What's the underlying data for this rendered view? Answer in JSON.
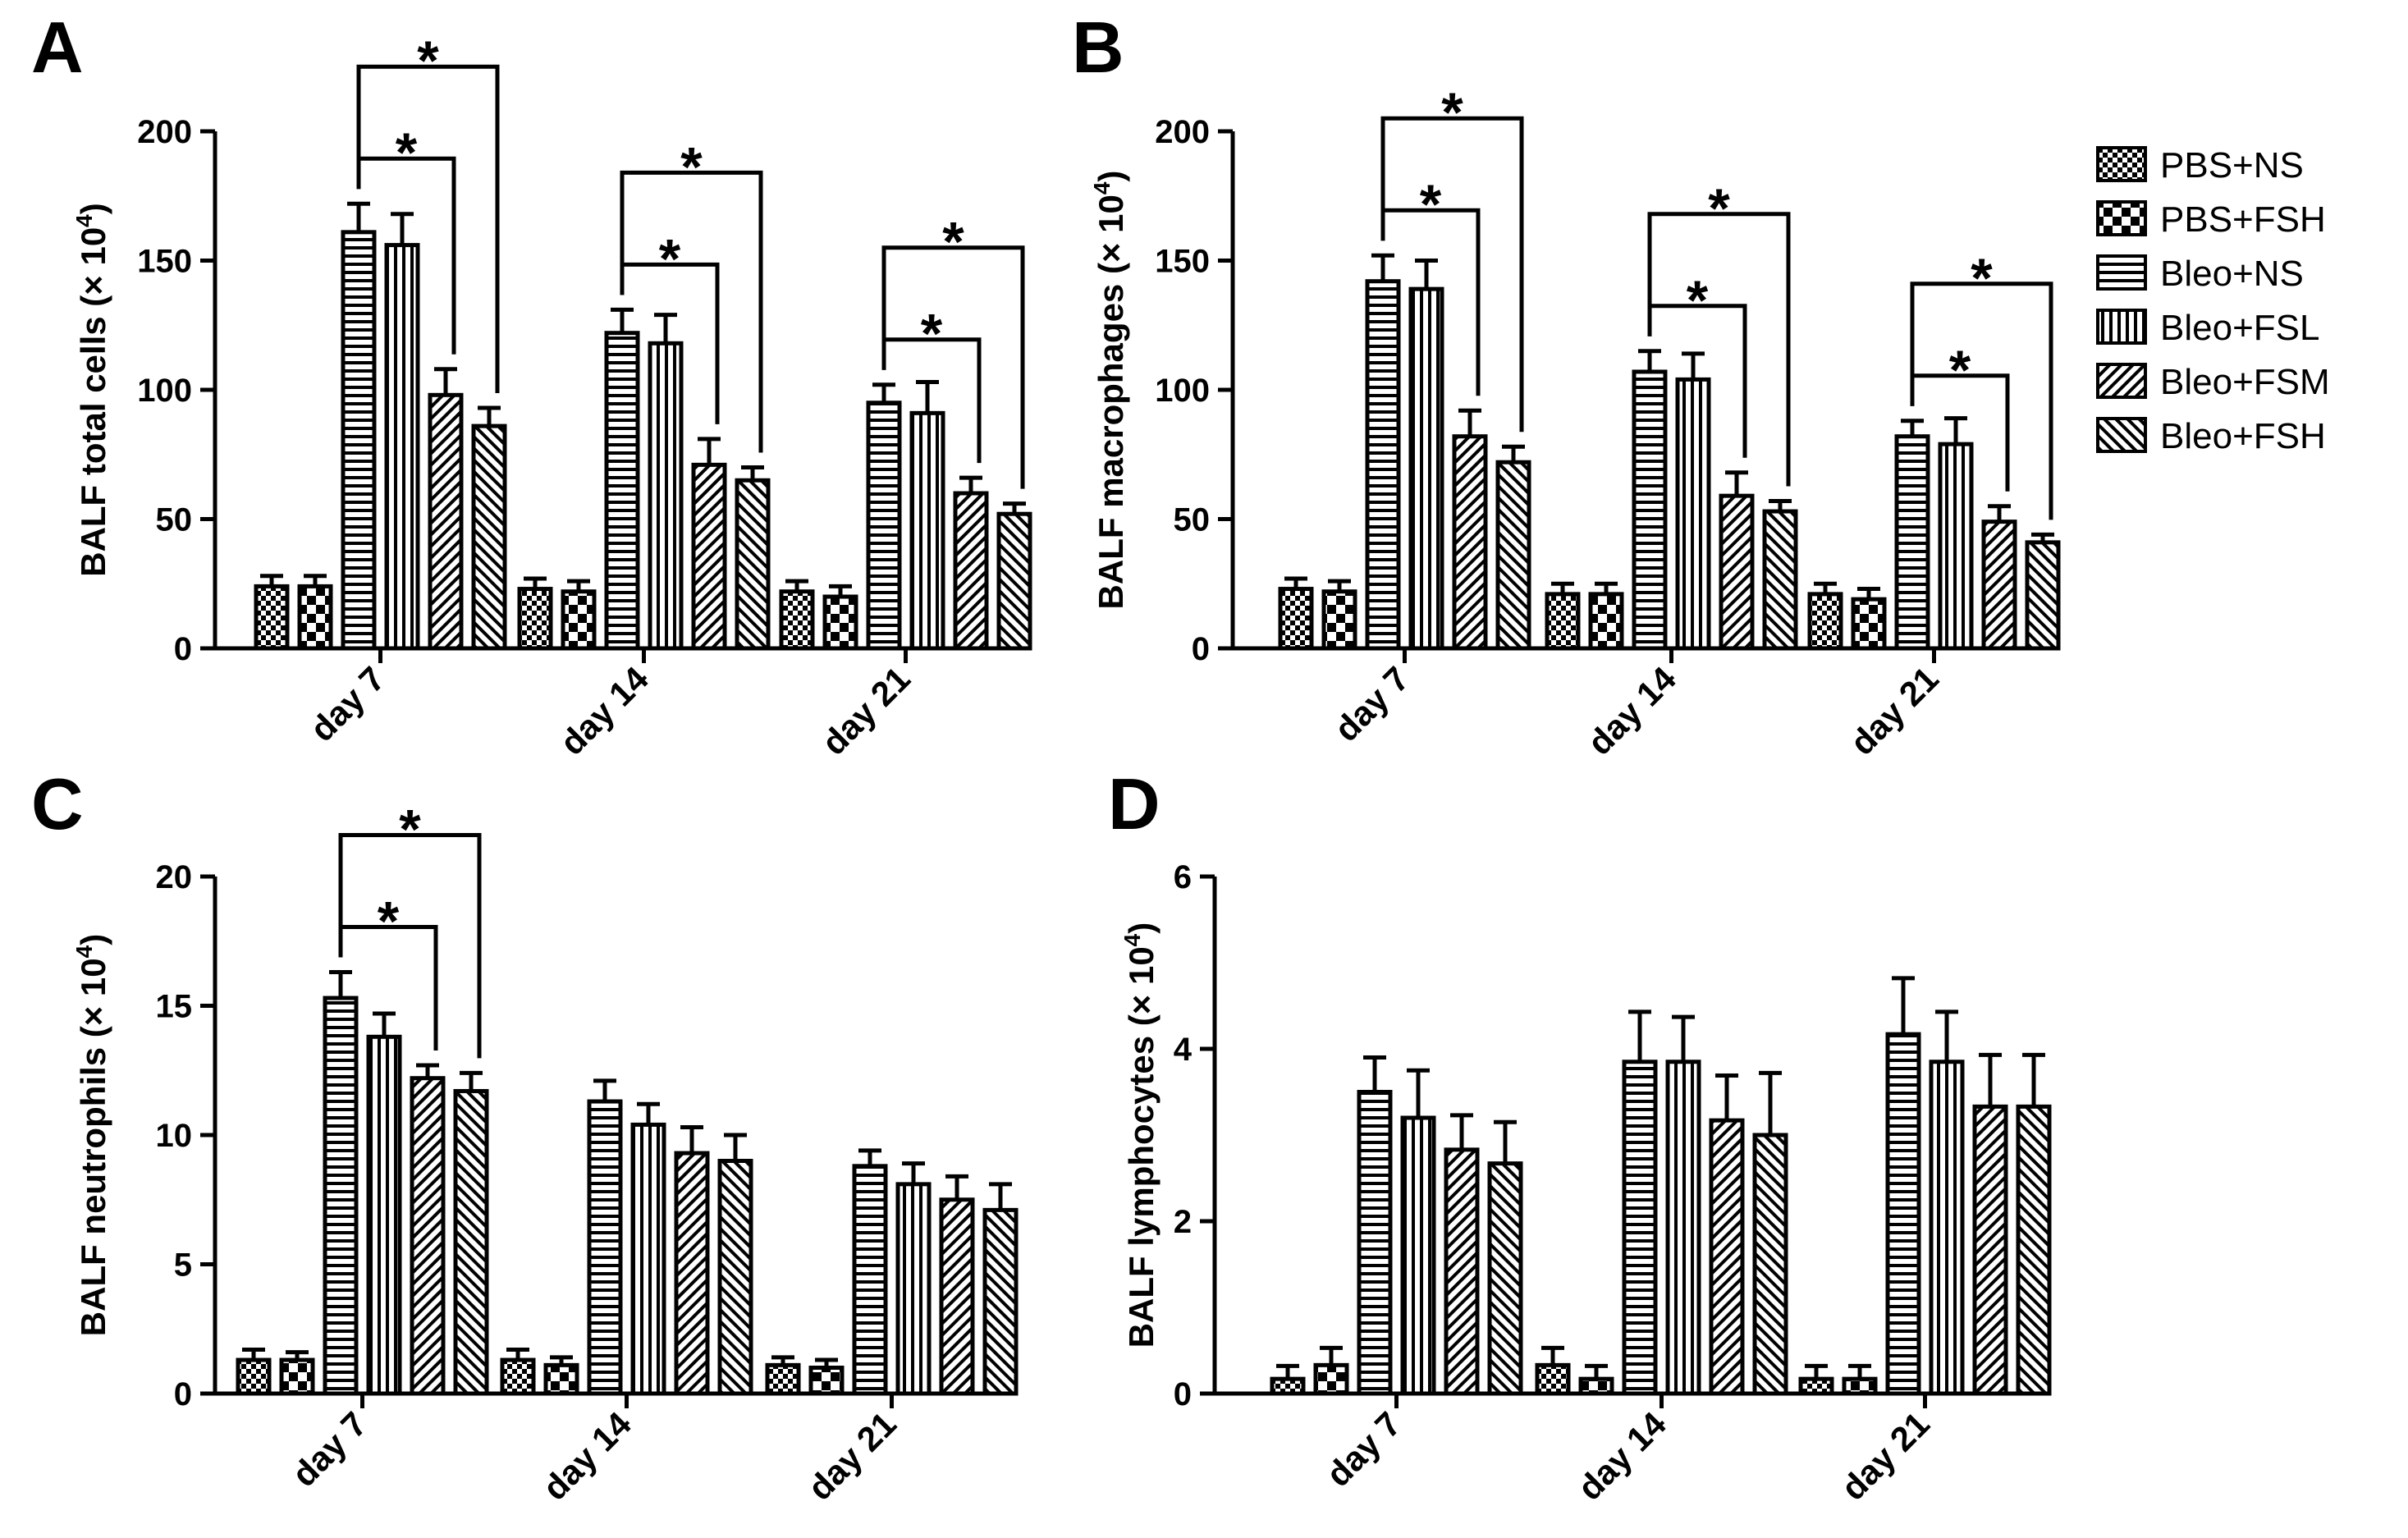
{
  "legend": {
    "position": "right",
    "entries": [
      {
        "label": "PBS+NS",
        "pattern": "checker"
      },
      {
        "label": "PBS+FSH",
        "pattern": "checker-large"
      },
      {
        "label": "Bleo+NS",
        "pattern": "horizontal"
      },
      {
        "label": "Bleo+FSL",
        "pattern": "vertical"
      },
      {
        "label": "Bleo+FSM",
        "pattern": "diag-right"
      },
      {
        "label": "Bleo+FSH",
        "pattern": "diag-left"
      }
    ]
  },
  "chart_data": [
    {
      "panel": "A",
      "type": "bar",
      "ylabel_main": "BALF total cells (× 10",
      "ylabel_exp": "4",
      "ylabel_close": ")",
      "ylim": [
        0,
        200
      ],
      "yticks": [
        "0",
        "50",
        "100",
        "150",
        "200"
      ],
      "categories": [
        "day 7",
        "day 14",
        "day 21"
      ],
      "series": [
        {
          "legend_index": 0,
          "values": [
            24,
            23,
            22
          ],
          "errors": [
            4,
            4,
            4
          ]
        },
        {
          "legend_index": 1,
          "values": [
            24,
            22,
            20
          ],
          "errors": [
            4,
            4,
            4
          ]
        },
        {
          "legend_index": 2,
          "values": [
            161,
            122,
            95
          ],
          "errors": [
            11,
            9,
            7
          ]
        },
        {
          "legend_index": 3,
          "values": [
            156,
            118,
            91
          ],
          "errors": [
            12,
            11,
            12
          ]
        },
        {
          "legend_index": 4,
          "values": [
            98,
            71,
            60
          ],
          "errors": [
            10,
            10,
            6
          ]
        },
        {
          "legend_index": 5,
          "values": [
            86,
            65,
            52
          ],
          "errors": [
            7,
            5,
            4
          ]
        }
      ],
      "significance": [
        {
          "category": 0,
          "from": 2,
          "to": 4,
          "label": "*"
        },
        {
          "category": 0,
          "from": 2,
          "to": 5,
          "label": "*"
        },
        {
          "category": 1,
          "from": 2,
          "to": 4,
          "label": "*"
        },
        {
          "category": 1,
          "from": 2,
          "to": 5,
          "label": "*"
        },
        {
          "category": 2,
          "from": 2,
          "to": 4,
          "label": "*"
        },
        {
          "category": 2,
          "from": 2,
          "to": 5,
          "label": "*"
        }
      ]
    },
    {
      "panel": "B",
      "type": "bar",
      "ylabel_main": "BALF macrophages (× 10",
      "ylabel_exp": "4",
      "ylabel_close": ")",
      "ylim": [
        0,
        200
      ],
      "yticks": [
        "0",
        "50",
        "100",
        "150",
        "200"
      ],
      "categories": [
        "day 7",
        "day 14",
        "day 21"
      ],
      "series": [
        {
          "legend_index": 0,
          "values": [
            23,
            21,
            21
          ],
          "errors": [
            4,
            4,
            4
          ]
        },
        {
          "legend_index": 1,
          "values": [
            22,
            21,
            19
          ],
          "errors": [
            4,
            4,
            4
          ]
        },
        {
          "legend_index": 2,
          "values": [
            142,
            107,
            82
          ],
          "errors": [
            10,
            8,
            6
          ]
        },
        {
          "legend_index": 3,
          "values": [
            139,
            104,
            79
          ],
          "errors": [
            11,
            10,
            10
          ]
        },
        {
          "legend_index": 4,
          "values": [
            82,
            59,
            49
          ],
          "errors": [
            10,
            9,
            6
          ]
        },
        {
          "legend_index": 5,
          "values": [
            72,
            53,
            41
          ],
          "errors": [
            6,
            4,
            3
          ]
        }
      ],
      "significance": [
        {
          "category": 0,
          "from": 2,
          "to": 4,
          "label": "*"
        },
        {
          "category": 0,
          "from": 2,
          "to": 5,
          "label": "*"
        },
        {
          "category": 1,
          "from": 2,
          "to": 4,
          "label": "*"
        },
        {
          "category": 1,
          "from": 2,
          "to": 5,
          "label": "*"
        },
        {
          "category": 2,
          "from": 2,
          "to": 4,
          "label": "*"
        },
        {
          "category": 2,
          "from": 2,
          "to": 5,
          "label": "*"
        }
      ]
    },
    {
      "panel": "C",
      "type": "bar",
      "ylabel_main": "BALF neutrophils (× 10",
      "ylabel_exp": "4",
      "ylabel_close": ")",
      "ylim": [
        0,
        20
      ],
      "yticks": [
        "0",
        "5",
        "10",
        "15",
        "20"
      ],
      "categories": [
        "day 7",
        "day 14",
        "day 21"
      ],
      "series": [
        {
          "legend_index": 0,
          "values": [
            1.3,
            1.3,
            1.1
          ],
          "errors": [
            0.4,
            0.4,
            0.3
          ]
        },
        {
          "legend_index": 1,
          "values": [
            1.3,
            1.1,
            1.0
          ],
          "errors": [
            0.3,
            0.3,
            0.3
          ]
        },
        {
          "legend_index": 2,
          "values": [
            15.3,
            11.3,
            8.8
          ],
          "errors": [
            1.0,
            0.8,
            0.6
          ]
        },
        {
          "legend_index": 3,
          "values": [
            13.8,
            10.4,
            8.1
          ],
          "errors": [
            0.9,
            0.8,
            0.8
          ]
        },
        {
          "legend_index": 4,
          "values": [
            12.2,
            9.3,
            7.5
          ],
          "errors": [
            0.5,
            1.0,
            0.9
          ]
        },
        {
          "legend_index": 5,
          "values": [
            11.7,
            9.0,
            7.1
          ],
          "errors": [
            0.7,
            1.0,
            1.0
          ]
        }
      ],
      "significance": [
        {
          "category": 0,
          "from": 2,
          "to": 4,
          "label": "*"
        },
        {
          "category": 0,
          "from": 2,
          "to": 5,
          "label": "*"
        }
      ]
    },
    {
      "panel": "D",
      "type": "bar",
      "ylabel_main": "BALF lymphocytes (× 10",
      "ylabel_exp": "4",
      "ylabel_close": ")",
      "ylim": [
        0,
        6
      ],
      "yticks": [
        "0",
        "2",
        "4",
        "6"
      ],
      "categories": [
        "day 7",
        "day 14",
        "day 21"
      ],
      "series": [
        {
          "legend_index": 0,
          "values": [
            0.17,
            0.33,
            0.17
          ],
          "errors": [
            0.15,
            0.2,
            0.15
          ]
        },
        {
          "legend_index": 1,
          "values": [
            0.33,
            0.17,
            0.17
          ],
          "errors": [
            0.2,
            0.15,
            0.15
          ]
        },
        {
          "legend_index": 2,
          "values": [
            3.5,
            3.85,
            4.17
          ],
          "errors": [
            0.4,
            0.58,
            0.65
          ]
        },
        {
          "legend_index": 3,
          "values": [
            3.2,
            3.85,
            3.85
          ],
          "errors": [
            0.55,
            0.52,
            0.58
          ]
        },
        {
          "legend_index": 4,
          "values": [
            2.83,
            3.17,
            3.33
          ],
          "errors": [
            0.4,
            0.52,
            0.6
          ]
        },
        {
          "legend_index": 5,
          "values": [
            2.67,
            3.0,
            3.33
          ],
          "errors": [
            0.48,
            0.72,
            0.6
          ]
        }
      ],
      "significance": []
    }
  ]
}
